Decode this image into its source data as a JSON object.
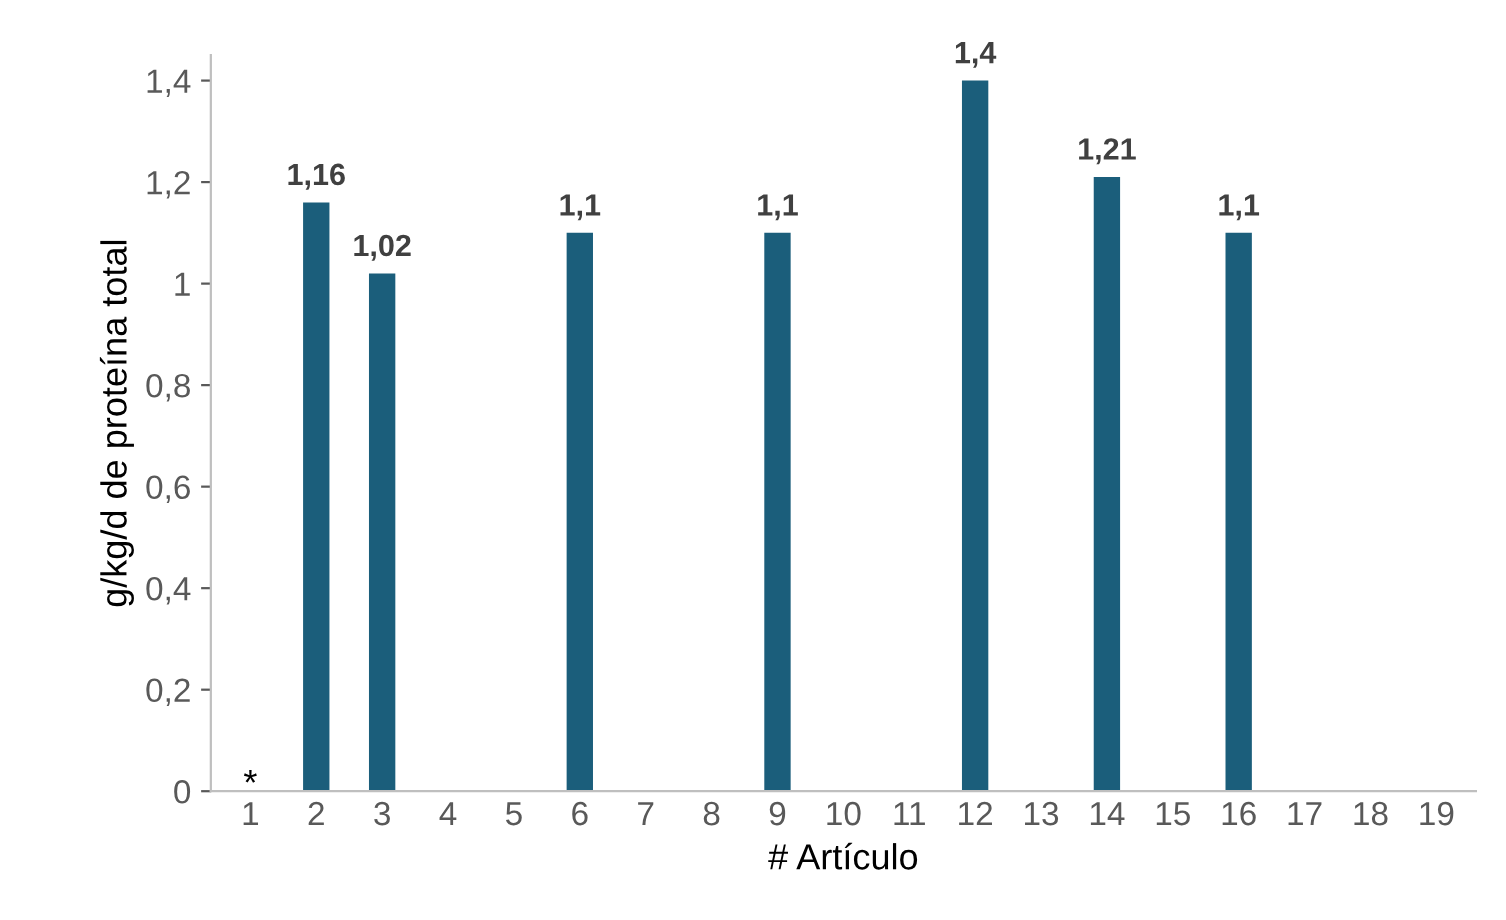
{
  "chart_data": {
    "type": "bar",
    "categories": [
      "1",
      "2",
      "3",
      "4",
      "5",
      "6",
      "7",
      "8",
      "9",
      "10",
      "11",
      "12",
      "13",
      "14",
      "15",
      "16",
      "17",
      "18",
      "19"
    ],
    "values": [
      null,
      1.16,
      1.02,
      null,
      null,
      1.1,
      null,
      null,
      1.1,
      null,
      null,
      1.4,
      null,
      1.21,
      null,
      1.1,
      null,
      null,
      null
    ],
    "value_labels": [
      null,
      "1,16",
      "1,02",
      null,
      null,
      "1,1",
      null,
      null,
      "1,1",
      null,
      null,
      "1,4",
      null,
      "1,21",
      null,
      "1,1",
      null,
      null,
      null
    ],
    "color": "#1b5e7b",
    "ylim": [
      0,
      1.45
    ],
    "yticks": [
      0,
      {
        "value": 0.2,
        "label": "0,2"
      },
      {
        "value": 0.4,
        "label": "0,4"
      },
      {
        "value": 0.6,
        "label": "0,6"
      },
      {
        "value": 0.8,
        "label": "0,8"
      },
      1,
      {
        "value": 1.2,
        "label": "1,2"
      },
      {
        "value": 1.4,
        "label": "1,4"
      }
    ],
    "xlabel": "# Artículo",
    "ylabel": "g/kg/d de proteína total",
    "annotations": [
      "*"
    ]
  }
}
